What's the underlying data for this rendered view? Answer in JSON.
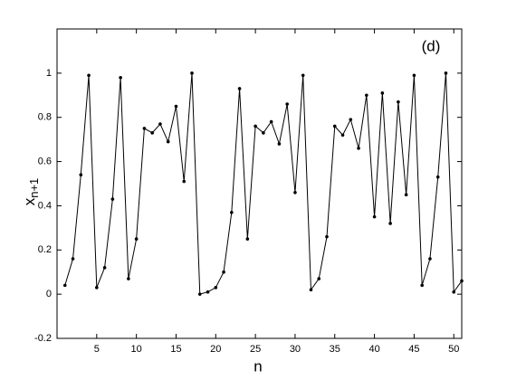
{
  "chart_data": {
    "type": "line",
    "xlabel": "n",
    "ylabel": "x",
    "ylabel_subscript": "n+1",
    "annotation": "(d)",
    "x": [
      1,
      2,
      3,
      4,
      5,
      6,
      7,
      8,
      9,
      10,
      11,
      12,
      13,
      14,
      15,
      16,
      17,
      18,
      19,
      20,
      21,
      22,
      23,
      24,
      25,
      26,
      27,
      28,
      29,
      30,
      31,
      32,
      33,
      34,
      35,
      36,
      37,
      38,
      39,
      40,
      41,
      42,
      43,
      44,
      45,
      46,
      47,
      48,
      49,
      50,
      51
    ],
    "series": [
      {
        "color": "#000000",
        "values": [
          0.04,
          0.16,
          0.54,
          0.99,
          0.03,
          0.12,
          0.43,
          0.98,
          0.07,
          0.25,
          0.75,
          0.73,
          0.77,
          0.69,
          0.85,
          0.51,
          1.0,
          0.0,
          0.01,
          0.03,
          0.1,
          0.37,
          0.93,
          0.25,
          0.76,
          0.73,
          0.78,
          0.68,
          0.86,
          0.46,
          0.99,
          0.02,
          0.07,
          0.26,
          0.76,
          0.72,
          0.79,
          0.66,
          0.9,
          0.35,
          0.91,
          0.32,
          0.87,
          0.45,
          0.99,
          0.04,
          0.16,
          0.53,
          1.0,
          0.01,
          0.06
        ]
      }
    ],
    "xlim": [
      0,
      51
    ],
    "xticks": [
      5,
      10,
      15,
      20,
      25,
      30,
      35,
      40,
      45,
      50
    ],
    "ylim": [
      -0.2,
      1.2
    ],
    "yticks": [
      -0.2,
      0,
      0.2,
      0.4,
      0.6,
      0.8,
      1
    ],
    "grid": false
  }
}
